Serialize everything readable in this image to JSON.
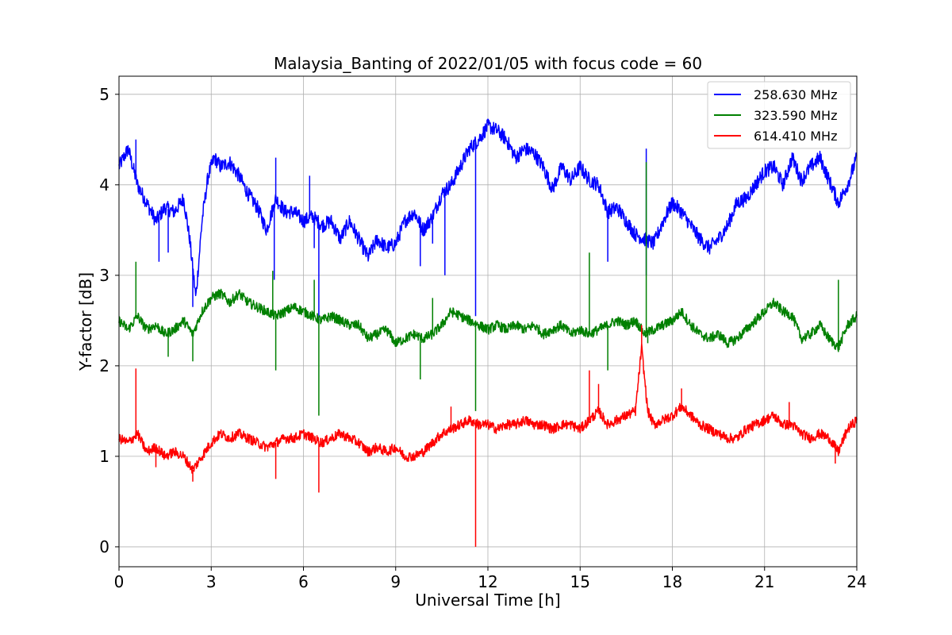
{
  "chart_data": {
    "type": "line",
    "title": "Malaysia_Banting of 2022/01/05 with focus code = 60",
    "xlabel": "Universal Time [h]",
    "ylabel": "Y-factor [dB]",
    "xlim": [
      0,
      24
    ],
    "ylim": [
      -0.22,
      5.2
    ],
    "xticks": [
      0,
      3,
      6,
      9,
      12,
      15,
      18,
      21,
      24
    ],
    "xtick_labels": [
      "0",
      "3",
      "6",
      "9",
      "12",
      "15",
      "18",
      "21",
      "24"
    ],
    "yticks": [
      0,
      1,
      2,
      3,
      4,
      5
    ],
    "ytick_labels": [
      "0",
      "1",
      "2",
      "3",
      "4",
      "5"
    ],
    "grid": true,
    "legend_position": "top-right",
    "series": [
      {
        "name": "258.630 MHz",
        "color": "#0000ff",
        "points": [
          [
            0.0,
            4.2
          ],
          [
            0.3,
            4.4
          ],
          [
            0.6,
            4.0
          ],
          [
            0.9,
            3.8
          ],
          [
            1.2,
            3.6
          ],
          [
            1.5,
            3.75
          ],
          [
            1.8,
            3.7
          ],
          [
            2.1,
            3.85
          ],
          [
            2.3,
            3.4
          ],
          [
            2.5,
            2.75
          ],
          [
            2.7,
            3.6
          ],
          [
            2.9,
            4.1
          ],
          [
            3.1,
            4.3
          ],
          [
            3.3,
            4.2
          ],
          [
            3.6,
            4.25
          ],
          [
            3.9,
            4.1
          ],
          [
            4.2,
            3.9
          ],
          [
            4.5,
            3.75
          ],
          [
            4.8,
            3.5
          ],
          [
            5.1,
            3.85
          ],
          [
            5.4,
            3.7
          ],
          [
            5.7,
            3.7
          ],
          [
            6.0,
            3.6
          ],
          [
            6.3,
            3.65
          ],
          [
            6.6,
            3.55
          ],
          [
            6.9,
            3.6
          ],
          [
            7.2,
            3.4
          ],
          [
            7.5,
            3.6
          ],
          [
            7.8,
            3.4
          ],
          [
            8.1,
            3.2
          ],
          [
            8.4,
            3.4
          ],
          [
            8.7,
            3.3
          ],
          [
            9.0,
            3.35
          ],
          [
            9.3,
            3.6
          ],
          [
            9.6,
            3.7
          ],
          [
            9.9,
            3.5
          ],
          [
            10.2,
            3.65
          ],
          [
            10.5,
            3.9
          ],
          [
            10.8,
            4.0
          ],
          [
            11.1,
            4.2
          ],
          [
            11.4,
            4.4
          ],
          [
            11.7,
            4.5
          ],
          [
            12.0,
            4.65
          ],
          [
            12.3,
            4.6
          ],
          [
            12.6,
            4.5
          ],
          [
            12.9,
            4.3
          ],
          [
            13.2,
            4.4
          ],
          [
            13.5,
            4.35
          ],
          [
            13.8,
            4.2
          ],
          [
            14.1,
            3.95
          ],
          [
            14.4,
            4.2
          ],
          [
            14.7,
            4.05
          ],
          [
            15.0,
            4.2
          ],
          [
            15.3,
            4.05
          ],
          [
            15.6,
            4.0
          ],
          [
            15.9,
            3.7
          ],
          [
            16.2,
            3.75
          ],
          [
            16.5,
            3.6
          ],
          [
            16.8,
            3.45
          ],
          [
            17.1,
            3.4
          ],
          [
            17.4,
            3.35
          ],
          [
            17.7,
            3.6
          ],
          [
            18.0,
            3.8
          ],
          [
            18.3,
            3.7
          ],
          [
            18.6,
            3.55
          ],
          [
            18.9,
            3.4
          ],
          [
            19.2,
            3.3
          ],
          [
            19.5,
            3.4
          ],
          [
            19.8,
            3.55
          ],
          [
            20.1,
            3.8
          ],
          [
            20.4,
            3.85
          ],
          [
            20.7,
            4.0
          ],
          [
            21.0,
            4.15
          ],
          [
            21.3,
            4.2
          ],
          [
            21.6,
            4.0
          ],
          [
            21.9,
            4.3
          ],
          [
            22.2,
            4.05
          ],
          [
            22.5,
            4.2
          ],
          [
            22.8,
            4.3
          ],
          [
            23.1,
            4.05
          ],
          [
            23.4,
            3.8
          ],
          [
            23.7,
            4.0
          ],
          [
            24.0,
            4.3
          ]
        ],
        "spikes": [
          [
            0.55,
            4.5
          ],
          [
            1.3,
            3.15
          ],
          [
            1.6,
            3.25
          ],
          [
            2.4,
            2.65
          ],
          [
            5.05,
            2.95
          ],
          [
            5.1,
            4.3
          ],
          [
            6.2,
            4.1
          ],
          [
            6.35,
            3.3
          ],
          [
            6.5,
            2.5
          ],
          [
            9.8,
            3.1
          ],
          [
            10.2,
            3.35
          ],
          [
            10.6,
            3.0
          ],
          [
            11.55,
            4.5
          ],
          [
            11.6,
            2.55
          ],
          [
            15.9,
            3.15
          ],
          [
            17.15,
            4.4
          ],
          [
            17.15,
            3.0
          ]
        ]
      },
      {
        "name": "323.590 MHz",
        "color": "#008000",
        "points": [
          [
            0.0,
            2.5
          ],
          [
            0.3,
            2.4
          ],
          [
            0.6,
            2.55
          ],
          [
            0.9,
            2.4
          ],
          [
            1.2,
            2.45
          ],
          [
            1.5,
            2.35
          ],
          [
            1.8,
            2.4
          ],
          [
            2.1,
            2.5
          ],
          [
            2.4,
            2.35
          ],
          [
            2.7,
            2.6
          ],
          [
            3.0,
            2.75
          ],
          [
            3.3,
            2.8
          ],
          [
            3.6,
            2.7
          ],
          [
            3.9,
            2.8
          ],
          [
            4.2,
            2.7
          ],
          [
            4.5,
            2.65
          ],
          [
            4.8,
            2.6
          ],
          [
            5.1,
            2.55
          ],
          [
            5.4,
            2.6
          ],
          [
            5.7,
            2.65
          ],
          [
            6.0,
            2.6
          ],
          [
            6.3,
            2.55
          ],
          [
            6.6,
            2.5
          ],
          [
            6.9,
            2.55
          ],
          [
            7.2,
            2.5
          ],
          [
            7.5,
            2.45
          ],
          [
            7.8,
            2.45
          ],
          [
            8.1,
            2.3
          ],
          [
            8.4,
            2.35
          ],
          [
            8.7,
            2.4
          ],
          [
            9.0,
            2.25
          ],
          [
            9.3,
            2.3
          ],
          [
            9.6,
            2.35
          ],
          [
            9.9,
            2.3
          ],
          [
            10.2,
            2.35
          ],
          [
            10.5,
            2.45
          ],
          [
            10.8,
            2.6
          ],
          [
            11.1,
            2.55
          ],
          [
            11.4,
            2.5
          ],
          [
            11.7,
            2.45
          ],
          [
            12.0,
            2.4
          ],
          [
            12.3,
            2.45
          ],
          [
            12.6,
            2.4
          ],
          [
            12.9,
            2.45
          ],
          [
            13.2,
            2.4
          ],
          [
            13.5,
            2.45
          ],
          [
            13.8,
            2.35
          ],
          [
            14.1,
            2.4
          ],
          [
            14.4,
            2.45
          ],
          [
            14.7,
            2.35
          ],
          [
            15.0,
            2.4
          ],
          [
            15.3,
            2.35
          ],
          [
            15.6,
            2.4
          ],
          [
            15.9,
            2.45
          ],
          [
            16.2,
            2.5
          ],
          [
            16.5,
            2.45
          ],
          [
            16.8,
            2.5
          ],
          [
            17.1,
            2.35
          ],
          [
            17.4,
            2.4
          ],
          [
            17.7,
            2.45
          ],
          [
            18.0,
            2.5
          ],
          [
            18.3,
            2.6
          ],
          [
            18.6,
            2.45
          ],
          [
            18.9,
            2.35
          ],
          [
            19.2,
            2.3
          ],
          [
            19.5,
            2.35
          ],
          [
            19.8,
            2.25
          ],
          [
            20.1,
            2.3
          ],
          [
            20.4,
            2.4
          ],
          [
            20.7,
            2.5
          ],
          [
            21.0,
            2.6
          ],
          [
            21.3,
            2.7
          ],
          [
            21.6,
            2.6
          ],
          [
            21.9,
            2.55
          ],
          [
            22.2,
            2.3
          ],
          [
            22.5,
            2.35
          ],
          [
            22.8,
            2.45
          ],
          [
            23.1,
            2.3
          ],
          [
            23.4,
            2.2
          ],
          [
            23.7,
            2.45
          ],
          [
            24.0,
            2.55
          ]
        ],
        "spikes": [
          [
            0.55,
            3.15
          ],
          [
            1.6,
            2.1
          ],
          [
            2.4,
            2.05
          ],
          [
            5.0,
            3.05
          ],
          [
            5.1,
            1.95
          ],
          [
            6.35,
            2.95
          ],
          [
            6.5,
            1.45
          ],
          [
            9.8,
            1.85
          ],
          [
            10.2,
            2.75
          ],
          [
            11.6,
            1.5
          ],
          [
            15.3,
            3.25
          ],
          [
            15.9,
            1.95
          ],
          [
            17.15,
            4.25
          ],
          [
            17.2,
            2.25
          ],
          [
            23.4,
            2.95
          ]
        ]
      },
      {
        "name": "614.410 MHz",
        "color": "#ff0000",
        "points": [
          [
            0.0,
            1.2
          ],
          [
            0.3,
            1.15
          ],
          [
            0.6,
            1.25
          ],
          [
            0.9,
            1.05
          ],
          [
            1.2,
            1.1
          ],
          [
            1.5,
            1.0
          ],
          [
            1.8,
            1.05
          ],
          [
            2.1,
            1.0
          ],
          [
            2.4,
            0.85
          ],
          [
            2.7,
            1.0
          ],
          [
            3.0,
            1.15
          ],
          [
            3.3,
            1.25
          ],
          [
            3.6,
            1.2
          ],
          [
            3.9,
            1.25
          ],
          [
            4.2,
            1.2
          ],
          [
            4.5,
            1.15
          ],
          [
            4.8,
            1.1
          ],
          [
            5.1,
            1.15
          ],
          [
            5.4,
            1.2
          ],
          [
            5.7,
            1.2
          ],
          [
            6.0,
            1.25
          ],
          [
            6.3,
            1.2
          ],
          [
            6.6,
            1.15
          ],
          [
            6.9,
            1.2
          ],
          [
            7.2,
            1.25
          ],
          [
            7.5,
            1.2
          ],
          [
            7.8,
            1.15
          ],
          [
            8.1,
            1.05
          ],
          [
            8.4,
            1.1
          ],
          [
            8.7,
            1.05
          ],
          [
            9.0,
            1.1
          ],
          [
            9.3,
            1.0
          ],
          [
            9.6,
            1.0
          ],
          [
            9.9,
            1.05
          ],
          [
            10.2,
            1.15
          ],
          [
            10.5,
            1.25
          ],
          [
            10.8,
            1.3
          ],
          [
            11.1,
            1.35
          ],
          [
            11.4,
            1.4
          ],
          [
            11.7,
            1.35
          ],
          [
            12.0,
            1.35
          ],
          [
            12.3,
            1.3
          ],
          [
            12.6,
            1.35
          ],
          [
            12.9,
            1.35
          ],
          [
            13.2,
            1.4
          ],
          [
            13.5,
            1.35
          ],
          [
            13.8,
            1.35
          ],
          [
            14.1,
            1.3
          ],
          [
            14.4,
            1.35
          ],
          [
            14.7,
            1.35
          ],
          [
            15.0,
            1.3
          ],
          [
            15.3,
            1.4
          ],
          [
            15.6,
            1.5
          ],
          [
            15.9,
            1.35
          ],
          [
            16.2,
            1.4
          ],
          [
            16.5,
            1.45
          ],
          [
            16.8,
            1.5
          ],
          [
            17.0,
            2.2
          ],
          [
            17.2,
            1.5
          ],
          [
            17.4,
            1.35
          ],
          [
            17.7,
            1.4
          ],
          [
            18.0,
            1.45
          ],
          [
            18.3,
            1.55
          ],
          [
            18.6,
            1.45
          ],
          [
            18.9,
            1.35
          ],
          [
            19.2,
            1.3
          ],
          [
            19.5,
            1.25
          ],
          [
            19.8,
            1.2
          ],
          [
            20.1,
            1.2
          ],
          [
            20.4,
            1.3
          ],
          [
            20.7,
            1.35
          ],
          [
            21.0,
            1.4
          ],
          [
            21.3,
            1.45
          ],
          [
            21.6,
            1.35
          ],
          [
            21.9,
            1.35
          ],
          [
            22.2,
            1.25
          ],
          [
            22.5,
            1.2
          ],
          [
            22.8,
            1.25
          ],
          [
            23.1,
            1.2
          ],
          [
            23.4,
            1.05
          ],
          [
            23.7,
            1.3
          ],
          [
            24.0,
            1.4
          ]
        ],
        "spikes": [
          [
            0.55,
            1.97
          ],
          [
            1.2,
            0.88
          ],
          [
            2.4,
            0.72
          ],
          [
            5.1,
            0.75
          ],
          [
            6.5,
            0.6
          ],
          [
            10.8,
            1.55
          ],
          [
            11.6,
            0.0
          ],
          [
            15.3,
            1.95
          ],
          [
            15.6,
            1.8
          ],
          [
            17.0,
            2.45
          ],
          [
            18.3,
            1.75
          ],
          [
            21.8,
            1.6
          ],
          [
            23.3,
            0.92
          ]
        ]
      }
    ]
  }
}
